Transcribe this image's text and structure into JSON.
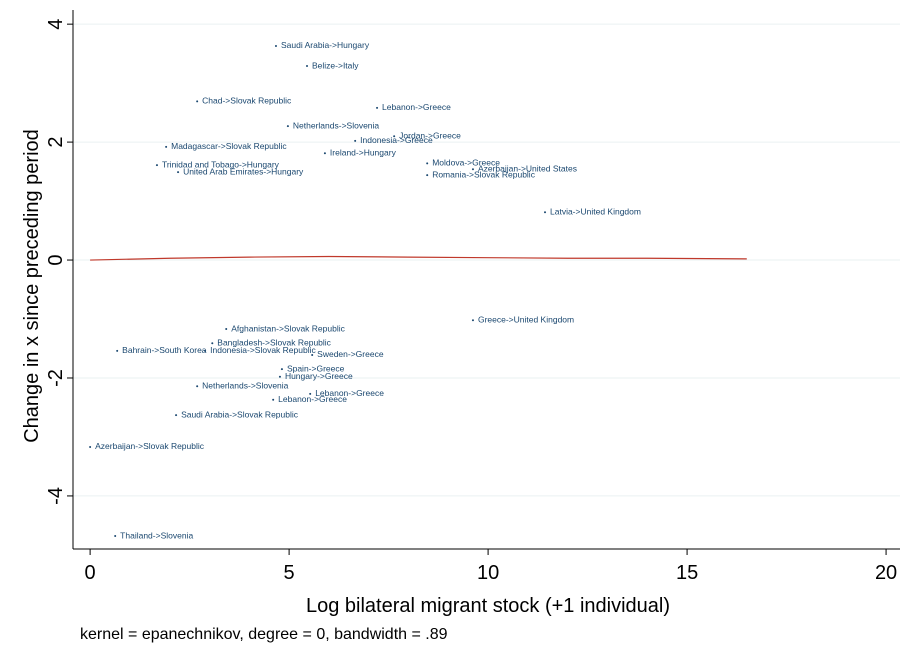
{
  "chart_data": {
    "type": "scatter",
    "x_label": "Log bilateral migrant stock (+1 individual)",
    "y_label": "Change in x since preceding period",
    "note": "kernel = epanechnikov, degree = 0, bandwidth = .89",
    "xlim": [
      -0.43,
      20.35
    ],
    "ylim": [
      -4.9,
      4.24
    ],
    "xticks": [
      0,
      5,
      10,
      15,
      20
    ],
    "yticks": [
      -4,
      -2,
      0,
      2,
      4
    ],
    "grid": true,
    "point_color": "#1a476f",
    "line_color": "#c0392b",
    "points": {
      "labels": [
        "Saudi Arabia->Hungary",
        "Belize->Italy",
        "Chad->Slovak Republic",
        "Lebanon->Greece",
        "Netherlands->Slovenia",
        "Jordan->Greece",
        "Indonesia->Greece",
        "Ireland->Hungary",
        "Azerbaijan->United States",
        "Moldova->Greece",
        "Romania->Slovak Republic",
        "Trinidad and Tobago->Hungary",
        "United Arab Emirates->Hungary",
        "Madagascar->Slovak Republic",
        "Latvia->United Kingdom",
        "Greece->United Kingdom",
        "Afghanistan->Slovak Republic",
        "Bangladesh->Slovak Republic",
        "Bahrain->South Korea",
        "Indonesia->Slovak Republic",
        "Sweden->Greece",
        "Spain->Greece",
        "Hungary->Greece",
        "Netherlands->Slovenia",
        "Lebanon->Greece",
        "Lebanon->Greece",
        "Saudi Arabia->Slovak Republic",
        "Azerbaijan->Slovak Republic",
        "Thailand->Slovenia"
      ],
      "x": [
        4.67,
        5.45,
        2.69,
        7.21,
        4.97,
        7.64,
        6.66,
        5.9,
        9.62,
        8.47,
        8.47,
        1.68,
        2.21,
        1.91,
        11.43,
        9.62,
        3.42,
        3.07,
        0.68,
        2.89,
        5.58,
        4.82,
        4.77,
        2.69,
        5.53,
        4.6,
        2.16,
        0,
        0.63
      ],
      "values": [
        3.63,
        3.29,
        2.69,
        2.58,
        2.27,
        2.1,
        2.02,
        1.81,
        1.54,
        1.64,
        1.44,
        1.61,
        1.49,
        1.92,
        0.81,
        -1.02,
        -1.17,
        -1.41,
        -1.54,
        -1.54,
        -1.61,
        -1.85,
        -1.98,
        -2.14,
        -2.27,
        -2.37,
        -2.63,
        -3.17,
        -4.68
      ]
    },
    "fit_line": {
      "x": [
        0,
        2,
        4,
        6,
        8,
        10,
        12,
        14,
        16.5
      ],
      "values": [
        0.0,
        0.03,
        0.05,
        0.06,
        0.05,
        0.04,
        0.03,
        0.03,
        0.02
      ]
    }
  }
}
